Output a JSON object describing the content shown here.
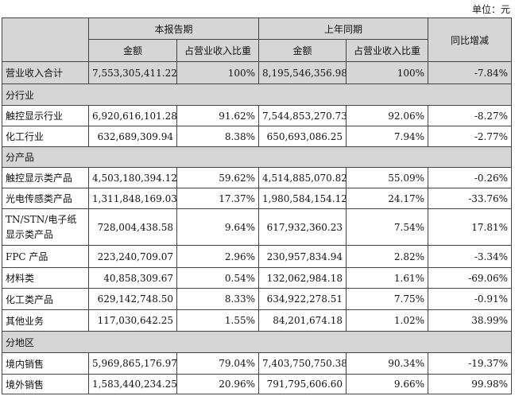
{
  "unit_label": "单位：元",
  "header": {
    "current_period": "本报告期",
    "prior_period": "上年同期",
    "yoy": "同比增减",
    "amount": "金额",
    "ratio": "占营业收入比重"
  },
  "total": {
    "label": "营业收入合计",
    "cur_amount": "7,553,305,411.22",
    "cur_ratio": "100%",
    "prev_amount": "8,195,546,356.98",
    "prev_ratio": "100%",
    "yoy": "-7.84%"
  },
  "sections": {
    "industry": {
      "title": "分行业",
      "rows": [
        {
          "label": "触控显示行业",
          "cur_amount": "6,920,616,101.28",
          "cur_ratio": "91.62%",
          "prev_amount": "7,544,853,270.73",
          "prev_ratio": "92.06%",
          "yoy": "-8.27%"
        },
        {
          "label": "化工行业",
          "cur_amount": "632,689,309.94",
          "cur_ratio": "8.38%",
          "prev_amount": "650,693,086.25",
          "prev_ratio": "7.94%",
          "yoy": "-2.77%"
        }
      ]
    },
    "product": {
      "title": "分产品",
      "rows": [
        {
          "label": "触控显示类产品",
          "cur_amount": "4,503,180,394.12",
          "cur_ratio": "59.62%",
          "prev_amount": "4,514,885,070.82",
          "prev_ratio": "55.09%",
          "yoy": "-0.26%"
        },
        {
          "label": "光电传感类产品",
          "cur_amount": "1,311,848,169.03",
          "cur_ratio": "17.37%",
          "prev_amount": "1,980,584,154.12",
          "prev_ratio": "24.17%",
          "yoy": "-33.76%"
        },
        {
          "label": "TN/STN/电子纸显示类产品",
          "cur_amount": "728,004,438.58",
          "cur_ratio": "9.64%",
          "prev_amount": "617,932,360.23",
          "prev_ratio": "7.54%",
          "yoy": "17.81%"
        },
        {
          "label": "FPC 产品",
          "cur_amount": "223,240,709.07",
          "cur_ratio": "2.96%",
          "prev_amount": "230,957,834.94",
          "prev_ratio": "2.82%",
          "yoy": "-3.34%"
        },
        {
          "label": "材料类",
          "cur_amount": "40,858,309.67",
          "cur_ratio": "0.54%",
          "prev_amount": "132,062,984.18",
          "prev_ratio": "1.61%",
          "yoy": "-69.06%"
        },
        {
          "label": "化工类产品",
          "cur_amount": "629,142,748.50",
          "cur_ratio": "8.33%",
          "prev_amount": "634,922,278.51",
          "prev_ratio": "7.75%",
          "yoy": "-0.91%"
        },
        {
          "label": "其他业务",
          "cur_amount": "117,030,642.25",
          "cur_ratio": "1.55%",
          "prev_amount": "84,201,674.18",
          "prev_ratio": "1.02%",
          "yoy": "38.99%"
        }
      ]
    },
    "region": {
      "title": "分地区",
      "rows": [
        {
          "label": "境内销售",
          "cur_amount": "5,969,865,176.97",
          "cur_ratio": "79.04%",
          "prev_amount": "7,403,750,750.38",
          "prev_ratio": "90.34%",
          "yoy": "-19.37%"
        },
        {
          "label": "境外销售",
          "cur_amount": "1,583,440,234.25",
          "cur_ratio": "20.96%",
          "prev_amount": "791,795,606.60",
          "prev_ratio": "9.66%",
          "yoy": "99.98%"
        }
      ]
    }
  }
}
